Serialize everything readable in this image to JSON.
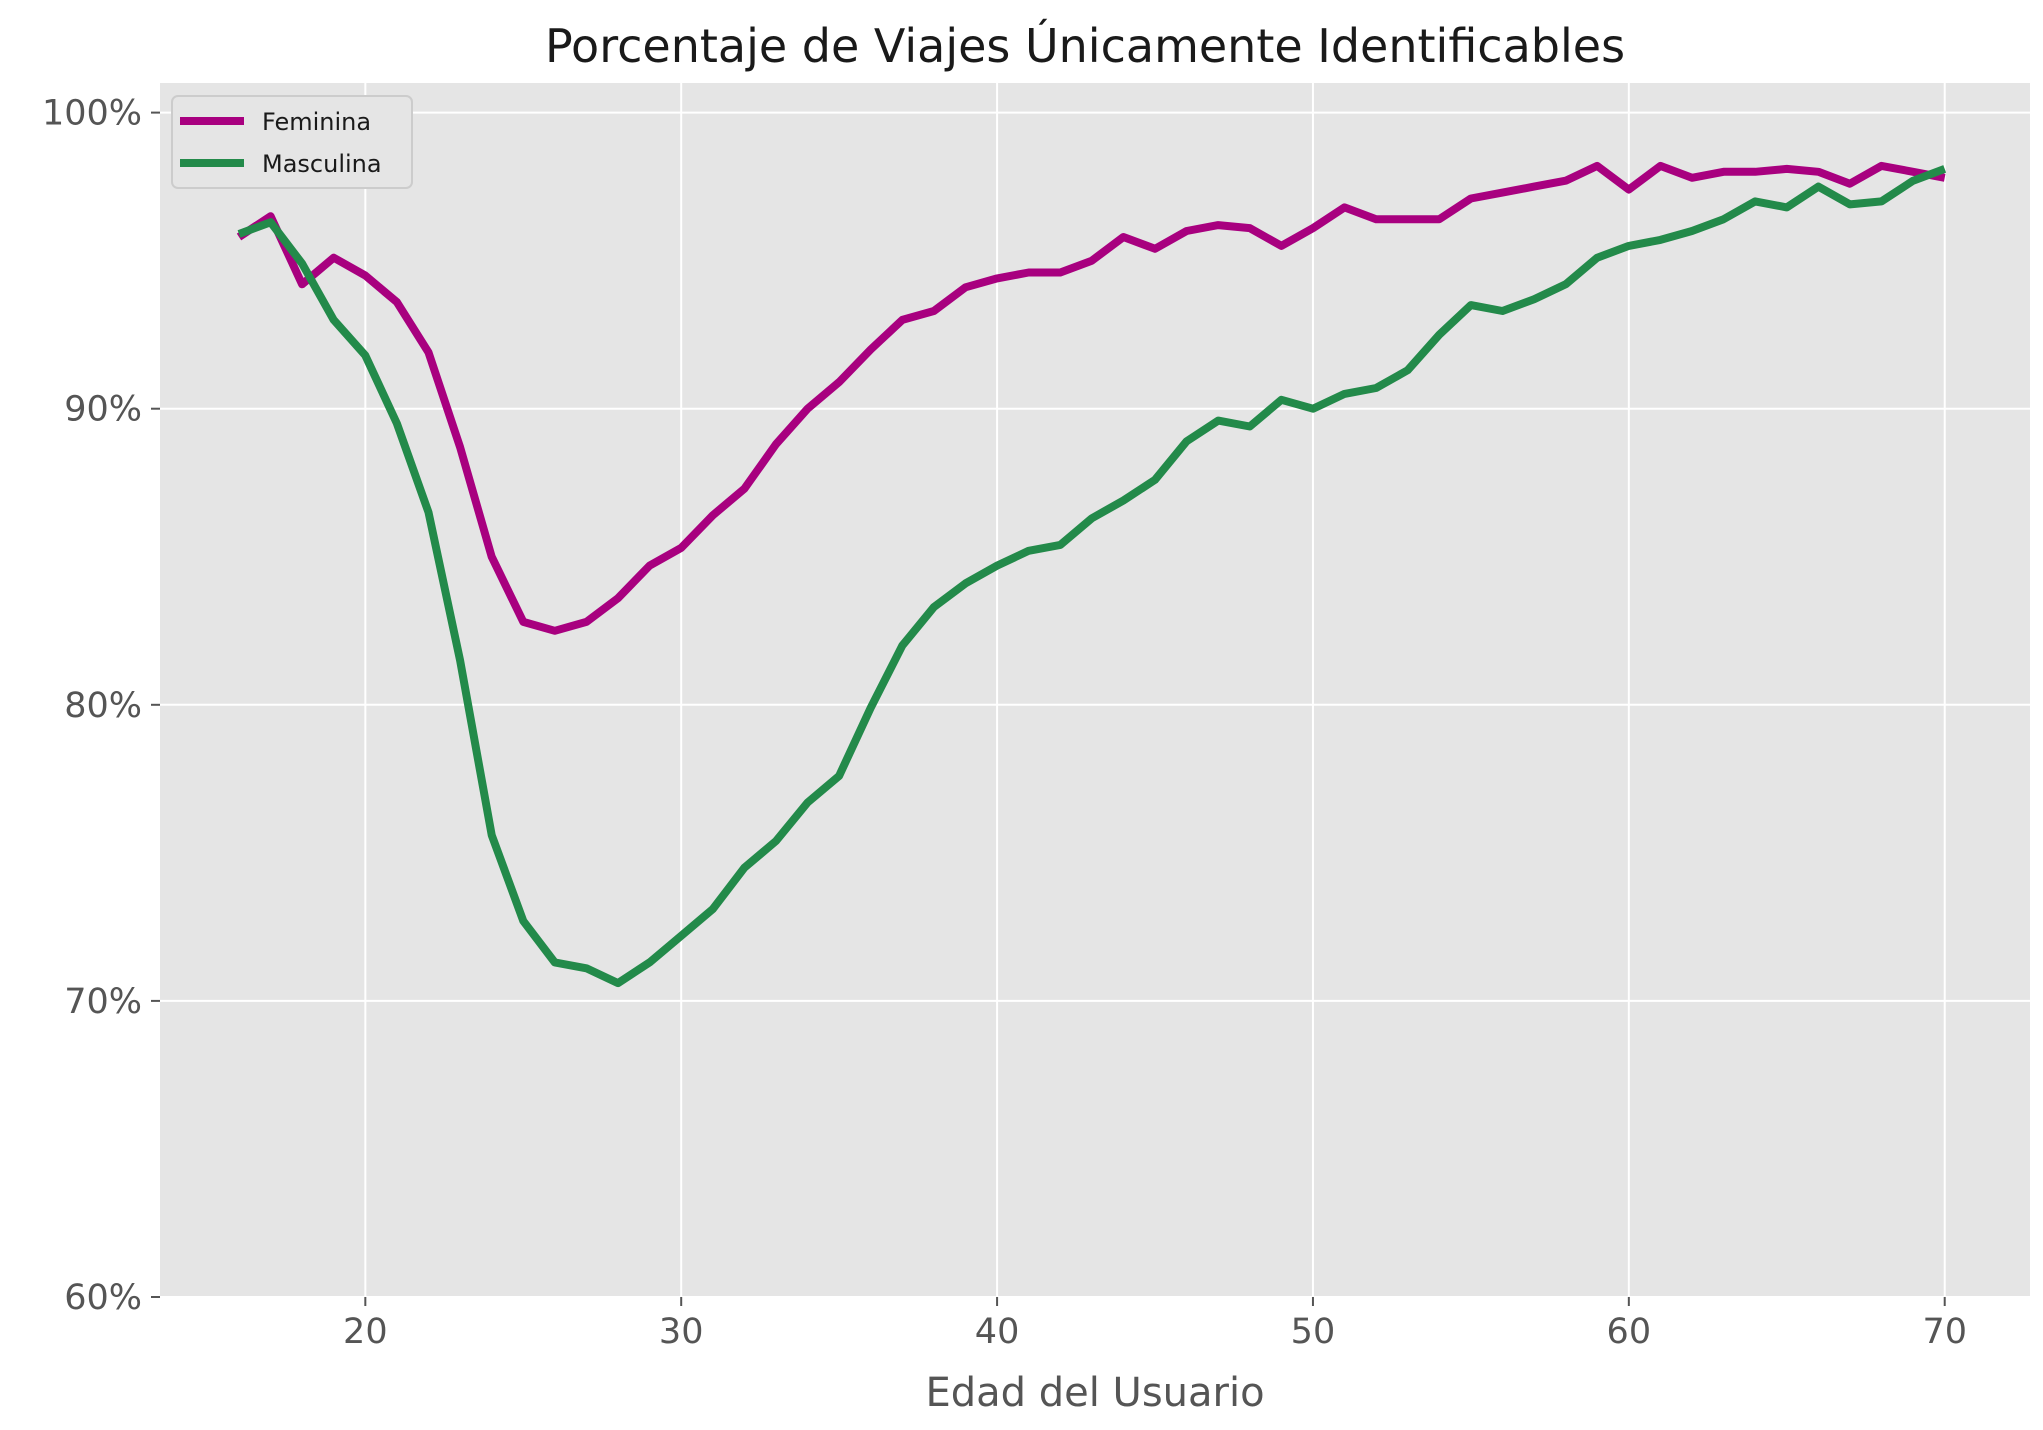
{
  "chart_data": {
    "type": "line",
    "title": "Porcentaje de Viajes Únicamente Identificables",
    "xlabel": "Edad del Usuario",
    "ylabel": "",
    "xlim": [
      13.5,
      72.7
    ],
    "ylim": [
      60,
      101
    ],
    "xticks": [
      20,
      30,
      40,
      50,
      60,
      70
    ],
    "yticks": [
      60,
      70,
      80,
      90,
      100
    ],
    "ytick_labels": [
      "60%",
      "70%",
      "80%",
      "90%",
      "100%"
    ],
    "grid": true,
    "legend_position": "top-left",
    "x": [
      16,
      17,
      18,
      19,
      20,
      21,
      22,
      23,
      24,
      25,
      26,
      27,
      28,
      29,
      30,
      31,
      32,
      33,
      34,
      35,
      36,
      37,
      38,
      39,
      40,
      41,
      42,
      43,
      44,
      45,
      46,
      47,
      48,
      49,
      50,
      51,
      52,
      53,
      54,
      55,
      56,
      57,
      58,
      59,
      60,
      61,
      62,
      63,
      64,
      65,
      66,
      67,
      68,
      69,
      70
    ],
    "series": [
      {
        "name": "Feminina",
        "color": "#a8007f",
        "values": [
          95.8,
          96.5,
          94.2,
          95.1,
          94.5,
          93.6,
          91.9,
          88.7,
          85.0,
          82.8,
          82.5,
          82.8,
          83.6,
          84.7,
          85.3,
          86.4,
          87.3,
          88.8,
          90.0,
          90.9,
          92.0,
          93.0,
          93.3,
          94.1,
          94.4,
          94.6,
          94.6,
          95.0,
          95.8,
          95.4,
          96.0,
          96.2,
          96.1,
          95.5,
          96.1,
          96.8,
          96.4,
          96.4,
          96.4,
          97.1,
          97.3,
          97.5,
          97.7,
          98.2,
          97.4,
          98.2,
          97.8,
          98.0,
          98.0,
          98.1,
          98.0,
          97.6,
          98.2,
          98.0,
          97.8
        ]
      },
      {
        "name": "Masculina",
        "color": "#238a4a",
        "values": [
          95.9,
          96.3,
          94.9,
          93.0,
          91.8,
          89.5,
          86.5,
          81.5,
          75.6,
          72.7,
          71.3,
          71.1,
          70.6,
          71.3,
          72.2,
          73.1,
          74.5,
          75.4,
          76.7,
          77.6,
          79.9,
          82.0,
          83.3,
          84.1,
          84.7,
          85.2,
          85.4,
          86.3,
          86.9,
          87.6,
          88.9,
          89.6,
          89.4,
          90.3,
          90.0,
          90.5,
          90.7,
          91.3,
          92.5,
          93.5,
          93.3,
          93.7,
          94.2,
          95.1,
          95.5,
          95.7,
          96.0,
          96.4,
          97.0,
          96.8,
          97.5,
          96.9,
          97.0,
          97.7,
          98.1
        ]
      }
    ]
  }
}
